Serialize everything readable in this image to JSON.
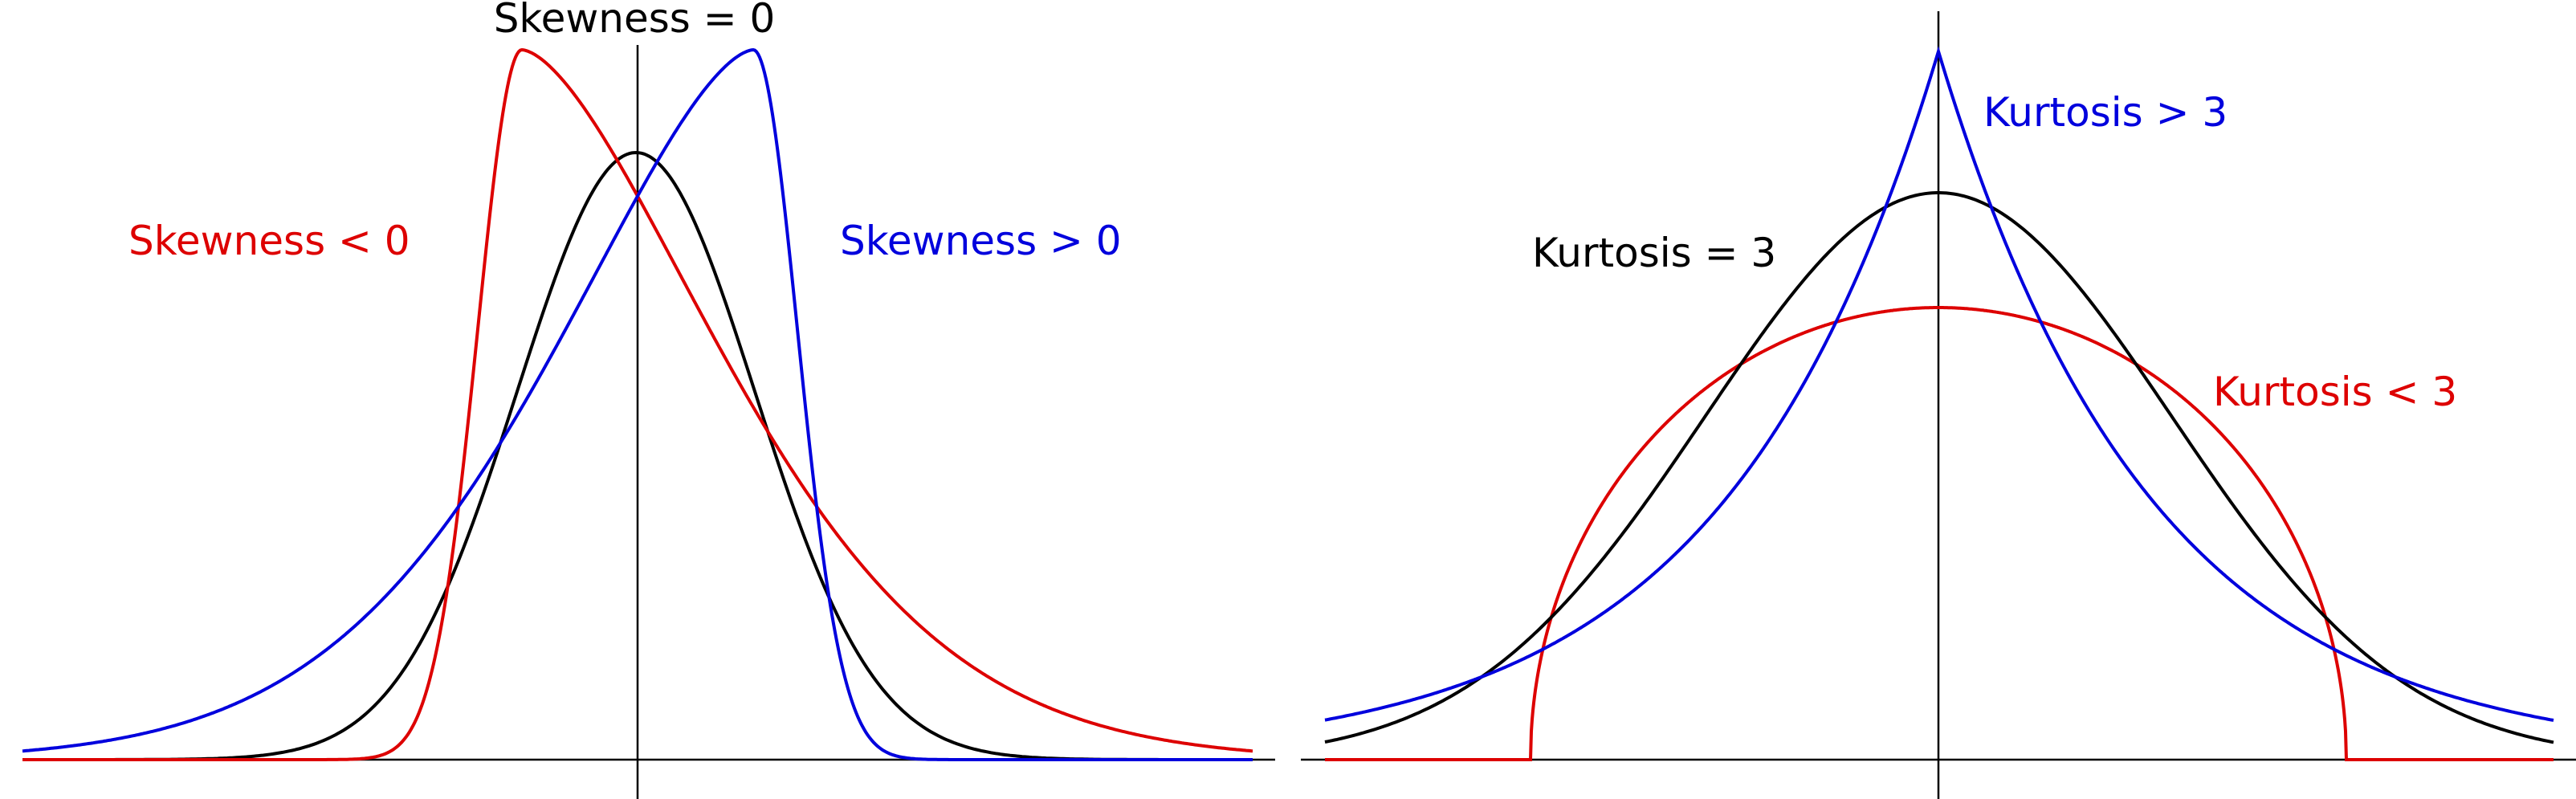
{
  "skewness_panel": {
    "labels": {
      "zero": "Skewness = 0",
      "negative": "Skewness < 0",
      "positive": "Skewness > 0"
    },
    "curves": [
      {
        "id": "skew-normal",
        "kind": "normal",
        "color": "#000000"
      },
      {
        "id": "skew-negative",
        "kind": "negative-skew",
        "color": "#dd0000"
      },
      {
        "id": "skew-positive",
        "kind": "positive-skew",
        "color": "#0000dd"
      }
    ]
  },
  "kurtosis_panel": {
    "labels": {
      "equal": "Kurtosis = 3",
      "greater": "Kurtosis > 3",
      "less": "Kurtosis < 3"
    },
    "curves": [
      {
        "id": "kurt-normal",
        "kind": "normal",
        "color": "#000000"
      },
      {
        "id": "kurt-laplace",
        "kind": "laplace",
        "color": "#0000dd"
      },
      {
        "id": "kurt-semicircle",
        "kind": "semicircle",
        "color": "#dd0000"
      }
    ]
  },
  "colors": {
    "black": "#000000",
    "red": "#dd0000",
    "blue": "#0000dd"
  }
}
